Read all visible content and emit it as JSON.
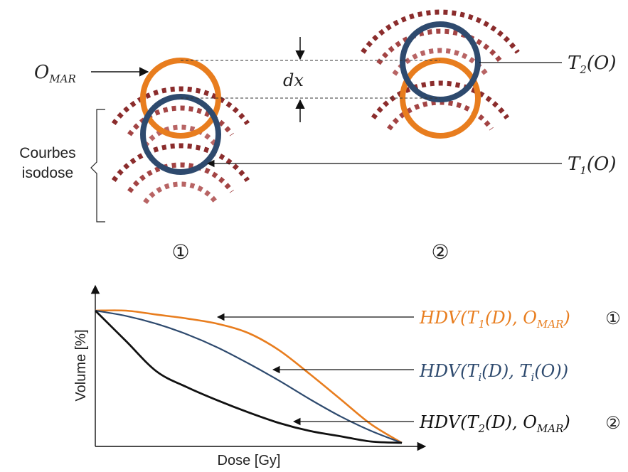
{
  "colors": {
    "orange": "#E87D1E",
    "navy": "#2E4A6E",
    "isodose": [
      "#8B2C2C",
      "#A34444",
      "#B86464",
      "#CC8A8A",
      "#DDB0B0",
      "#EBCACA"
    ],
    "black": "#111111"
  },
  "top_panel": {
    "o_mar": {
      "base": "O",
      "sub": "MAR"
    },
    "dx": "dx",
    "t2": {
      "pre": "T",
      "sub": "2",
      "post": "(O)"
    },
    "t1": {
      "pre": "T",
      "sub": "1",
      "post": "(O)"
    },
    "isodose_label_line1": "Courbes",
    "isodose_label_line2": "isodose",
    "marker_1": "①",
    "marker_2": "②"
  },
  "chart_data": {
    "type": "line",
    "xlabel": "Dose [Gy]",
    "ylabel": "Volume [%]",
    "xlim": [
      0,
      1
    ],
    "ylim": [
      0,
      1
    ],
    "series": [
      {
        "name": "HDV(T1(D), OMAR) ①",
        "color": "orange",
        "x": [
          0,
          0.1,
          0.2,
          0.3,
          0.4,
          0.5,
          0.6,
          0.7,
          0.8,
          0.9,
          1.0
        ],
        "y": [
          1.0,
          1.0,
          0.97,
          0.94,
          0.9,
          0.83,
          0.7,
          0.52,
          0.33,
          0.14,
          0.0
        ]
      },
      {
        "name": "HDV(Ti(D), Ti(O))",
        "color": "navy",
        "x": [
          0,
          0.1,
          0.2,
          0.3,
          0.4,
          0.5,
          0.6,
          0.7,
          0.8,
          0.9,
          1.0
        ],
        "y": [
          1.0,
          0.96,
          0.9,
          0.82,
          0.72,
          0.6,
          0.47,
          0.33,
          0.2,
          0.09,
          0.0
        ]
      },
      {
        "name": "HDV(T2(D), OMAR) ②",
        "color": "black",
        "x": [
          0,
          0.1,
          0.2,
          0.3,
          0.4,
          0.5,
          0.6,
          0.7,
          0.8,
          0.9,
          1.0
        ],
        "y": [
          1.0,
          0.77,
          0.54,
          0.42,
          0.32,
          0.23,
          0.15,
          0.09,
          0.05,
          0.01,
          0.0
        ]
      }
    ],
    "labels": {
      "s1": {
        "pre": "HDV(T",
        "sub1": "1",
        "mid": "(D), O",
        "sub2": "MAR",
        "post": ")",
        "marker": "①"
      },
      "s2": {
        "pre": "HDV(T",
        "sub1": "i",
        "mid": "(D), T",
        "sub2": "i",
        "post": "(O))",
        "marker": ""
      },
      "s3": {
        "pre": "HDV(T",
        "sub1": "2",
        "mid": "(D), O",
        "sub2": "MAR",
        "post": ")",
        "marker": "②"
      }
    }
  }
}
